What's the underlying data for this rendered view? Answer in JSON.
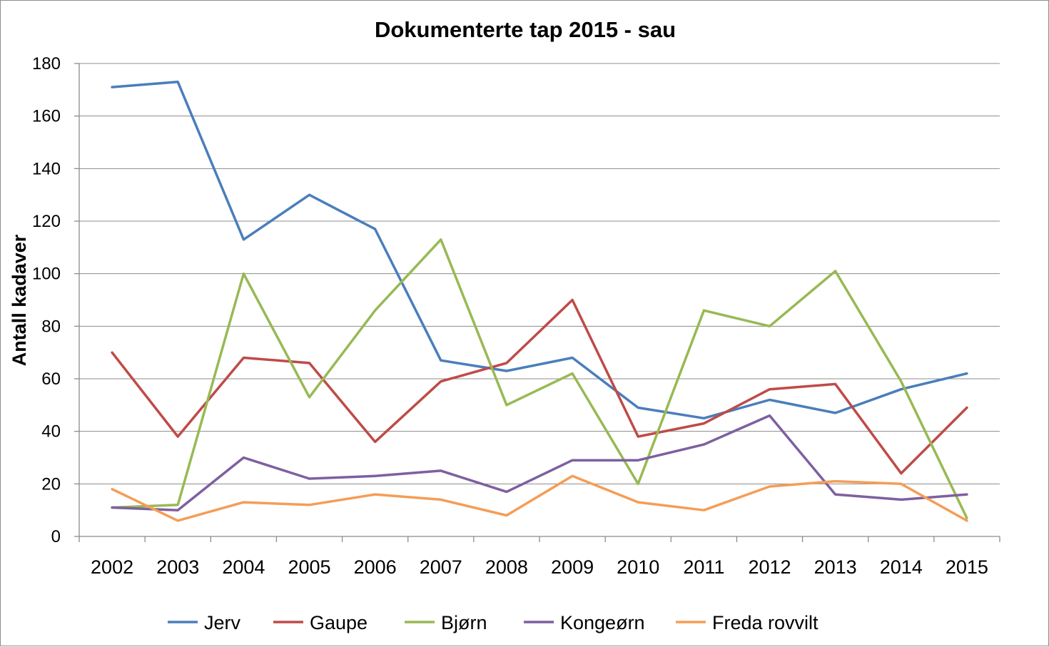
{
  "chart_data": {
    "type": "line",
    "title": "Dokumenterte tap 2015 - sau",
    "xlabel": "",
    "ylabel": "Antall kadaver",
    "ylim": [
      0,
      180
    ],
    "yticks": [
      0,
      20,
      40,
      60,
      80,
      100,
      120,
      140,
      160,
      180
    ],
    "grid": true,
    "legend_position": "bottom",
    "categories": [
      "2002",
      "2003",
      "2004",
      "2005",
      "2006",
      "2007",
      "2008",
      "2009",
      "2010",
      "2011",
      "2012",
      "2013",
      "2014",
      "2015"
    ],
    "series": [
      {
        "name": "Jerv",
        "color": "#4a7ebb",
        "values": [
          171,
          173,
          113,
          130,
          117,
          67,
          63,
          68,
          49,
          45,
          52,
          47,
          56,
          62
        ]
      },
      {
        "name": "Gaupe",
        "color": "#be4b48",
        "values": [
          70,
          38,
          68,
          66,
          36,
          59,
          66,
          90,
          38,
          43,
          56,
          58,
          24,
          49
        ]
      },
      {
        "name": "Bjørn",
        "color": "#98b954",
        "values": [
          11,
          12,
          100,
          53,
          86,
          113,
          50,
          62,
          20,
          86,
          80,
          101,
          59,
          7
        ]
      },
      {
        "name": "Kongeørn",
        "color": "#7d60a0",
        "values": [
          11,
          10,
          30,
          22,
          23,
          25,
          17,
          29,
          29,
          35,
          46,
          16,
          14,
          16
        ]
      },
      {
        "name": "Freda rovvilt",
        "color": "#f59d56",
        "values": [
          18,
          6,
          13,
          12,
          16,
          14,
          8,
          23,
          13,
          10,
          19,
          21,
          20,
          6
        ]
      }
    ]
  }
}
